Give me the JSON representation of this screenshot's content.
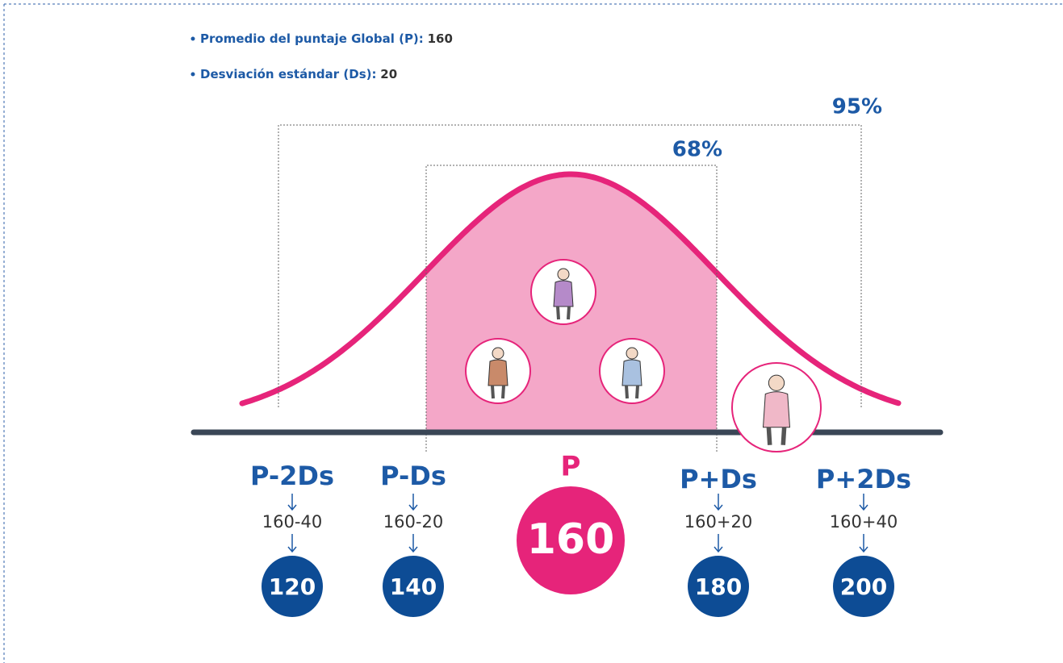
{
  "header": {
    "items": [
      {
        "label": "Promedio del puntaje Global (P):",
        "value": "160"
      },
      {
        "label": "Desviación estándar (Ds):",
        "value": "20"
      }
    ]
  },
  "ranges": [
    {
      "label": "95%"
    },
    {
      "label": "68%"
    }
  ],
  "center": {
    "label": "P",
    "result": "160"
  },
  "columns": [
    {
      "label": "P-2Ds",
      "expression": "160-40",
      "result": "120"
    },
    {
      "label": "P-Ds",
      "expression": "160-20",
      "result": "140"
    },
    {
      "label": "P+Ds",
      "expression": "160+20",
      "result": "180"
    },
    {
      "label": "P+2Ds",
      "expression": "160+40",
      "result": "200"
    }
  ]
}
